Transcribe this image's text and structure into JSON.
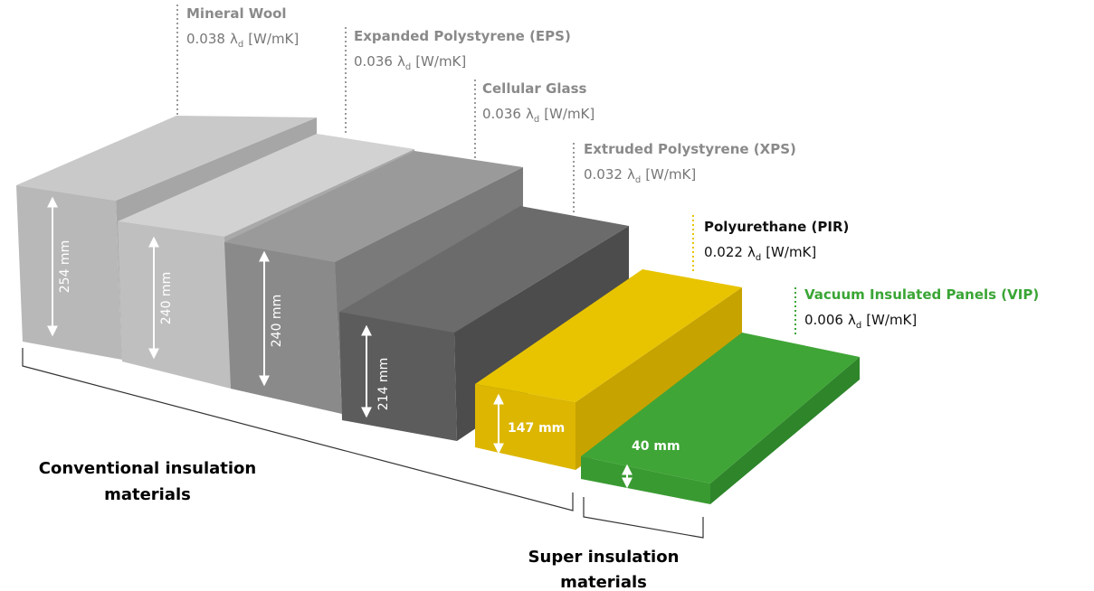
{
  "materials": [
    {
      "name": "Mineral Wool",
      "lambda": "0.038",
      "thickness": "254 mm"
    },
    {
      "name": "Expanded Polystyrene (EPS)",
      "lambda": "0.036",
      "thickness": "240 mm"
    },
    {
      "name": "Cellular Glass",
      "lambda": "0.036",
      "thickness": "240 mm"
    },
    {
      "name": "Extruded Polystyrene (XPS)",
      "lambda": "0.032",
      "thickness": "214 mm"
    },
    {
      "name": "Polyurethane (PIR)",
      "lambda": "0.022",
      "thickness": "147 mm"
    },
    {
      "name": "Vacuum Insulated Panels (VIP)",
      "lambda": "0.006",
      "thickness": "40 mm"
    }
  ],
  "lambda_symbol": "λ",
  "lambda_subscript": "d",
  "unit": "[W/mK]",
  "groups": [
    {
      "label_lines": [
        "Conventional insulation",
        "materials"
      ]
    },
    {
      "label_lines": [
        "Super insulation",
        "materials"
      ]
    }
  ]
}
